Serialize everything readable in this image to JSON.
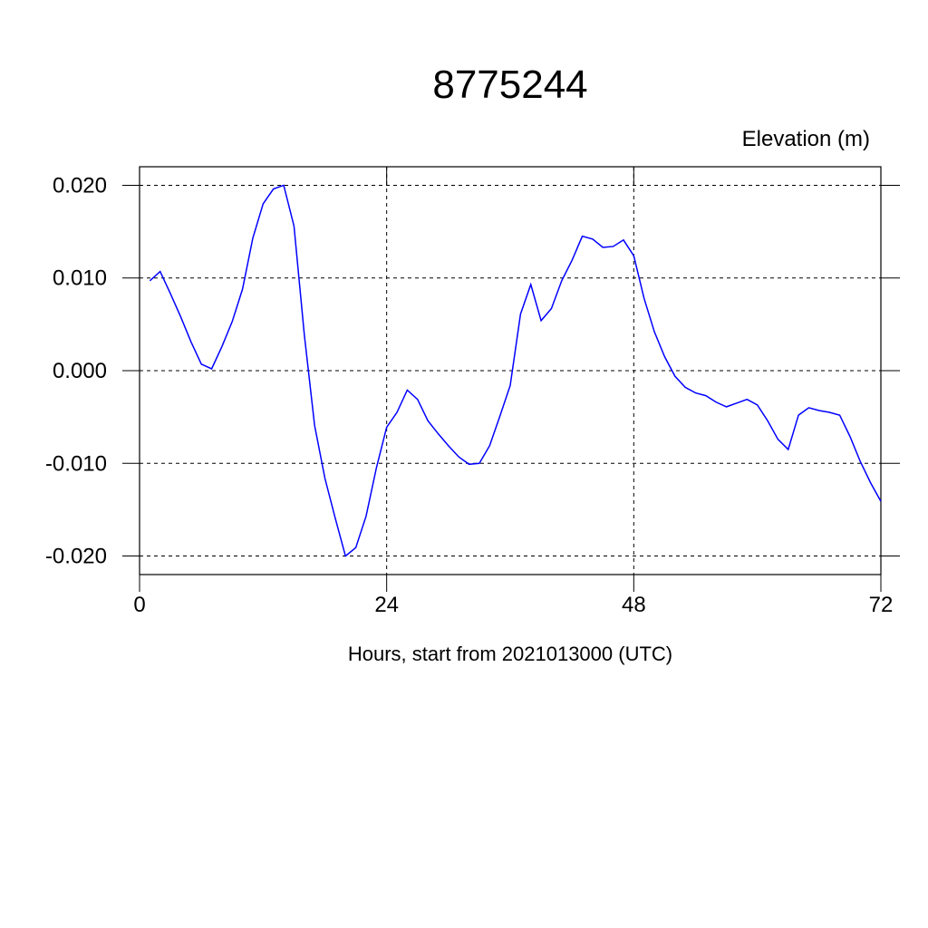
{
  "chart_data": {
    "type": "line",
    "title": "8775244",
    "subtitle": "Elevation (m)",
    "x_label": "Hours, start from 2021013000 (UTC)",
    "x": [
      1,
      2,
      3,
      4,
      5,
      6,
      7,
      8,
      9,
      10,
      11,
      12,
      13,
      14,
      15,
      16,
      17,
      18,
      19,
      20,
      21,
      22,
      23,
      24,
      25,
      26,
      27,
      28,
      29,
      30,
      31,
      32,
      33,
      34,
      35,
      36,
      37,
      38,
      39,
      40,
      41,
      42,
      43,
      44,
      45,
      46,
      47,
      48,
      49,
      50,
      51,
      52,
      53,
      54,
      55,
      56,
      57,
      58,
      59,
      60,
      61,
      62,
      63,
      64,
      65,
      66,
      67,
      68,
      69,
      70,
      71,
      72
    ],
    "series": [
      {
        "color": "#0000ff",
        "values": [
          0.0097,
          0.0107,
          0.0083,
          0.0058,
          0.0031,
          0.0007,
          0.0002,
          0.0026,
          0.0053,
          0.0088,
          0.0143,
          0.018,
          0.0196,
          0.02,
          0.0156,
          0.0039,
          -0.0059,
          -0.0116,
          -0.0159,
          -0.02,
          -0.0191,
          -0.0157,
          -0.0105,
          -0.0061,
          -0.0045,
          -0.0021,
          -0.0031,
          -0.0054,
          -0.0068,
          -0.0081,
          -0.0093,
          -0.0101,
          -0.01,
          -0.0081,
          -0.0049,
          -0.0016,
          0.0061,
          0.0093,
          0.0054,
          0.0067,
          0.0097,
          0.0119,
          0.0145,
          0.0142,
          0.0133,
          0.0134,
          0.0141,
          0.0124,
          0.0078,
          0.0042,
          0.0015,
          -0.0006,
          -0.0018,
          -0.0024,
          -0.0027,
          -0.0034,
          -0.0039,
          -0.0035,
          -0.0031,
          -0.0037,
          -0.0054,
          -0.0074,
          -0.0085,
          -0.0048,
          -0.004,
          -0.0043,
          -0.0045,
          -0.0048,
          -0.0071,
          -0.0098,
          -0.0121,
          -0.0141
        ]
      }
    ],
    "xlim": [
      0,
      72
    ],
    "xticks": [
      0,
      24,
      48,
      72
    ],
    "ylim": [
      -0.022,
      0.022
    ],
    "yticks": [
      {
        "value": -0.02,
        "label": "-0.020"
      },
      {
        "value": -0.01,
        "label": "-0.010"
      },
      {
        "value": 0,
        "label": "0.000"
      },
      {
        "value": 0.01,
        "label": "0.010"
      },
      {
        "value": 0.02,
        "label": "0.020"
      }
    ],
    "grid": true
  }
}
